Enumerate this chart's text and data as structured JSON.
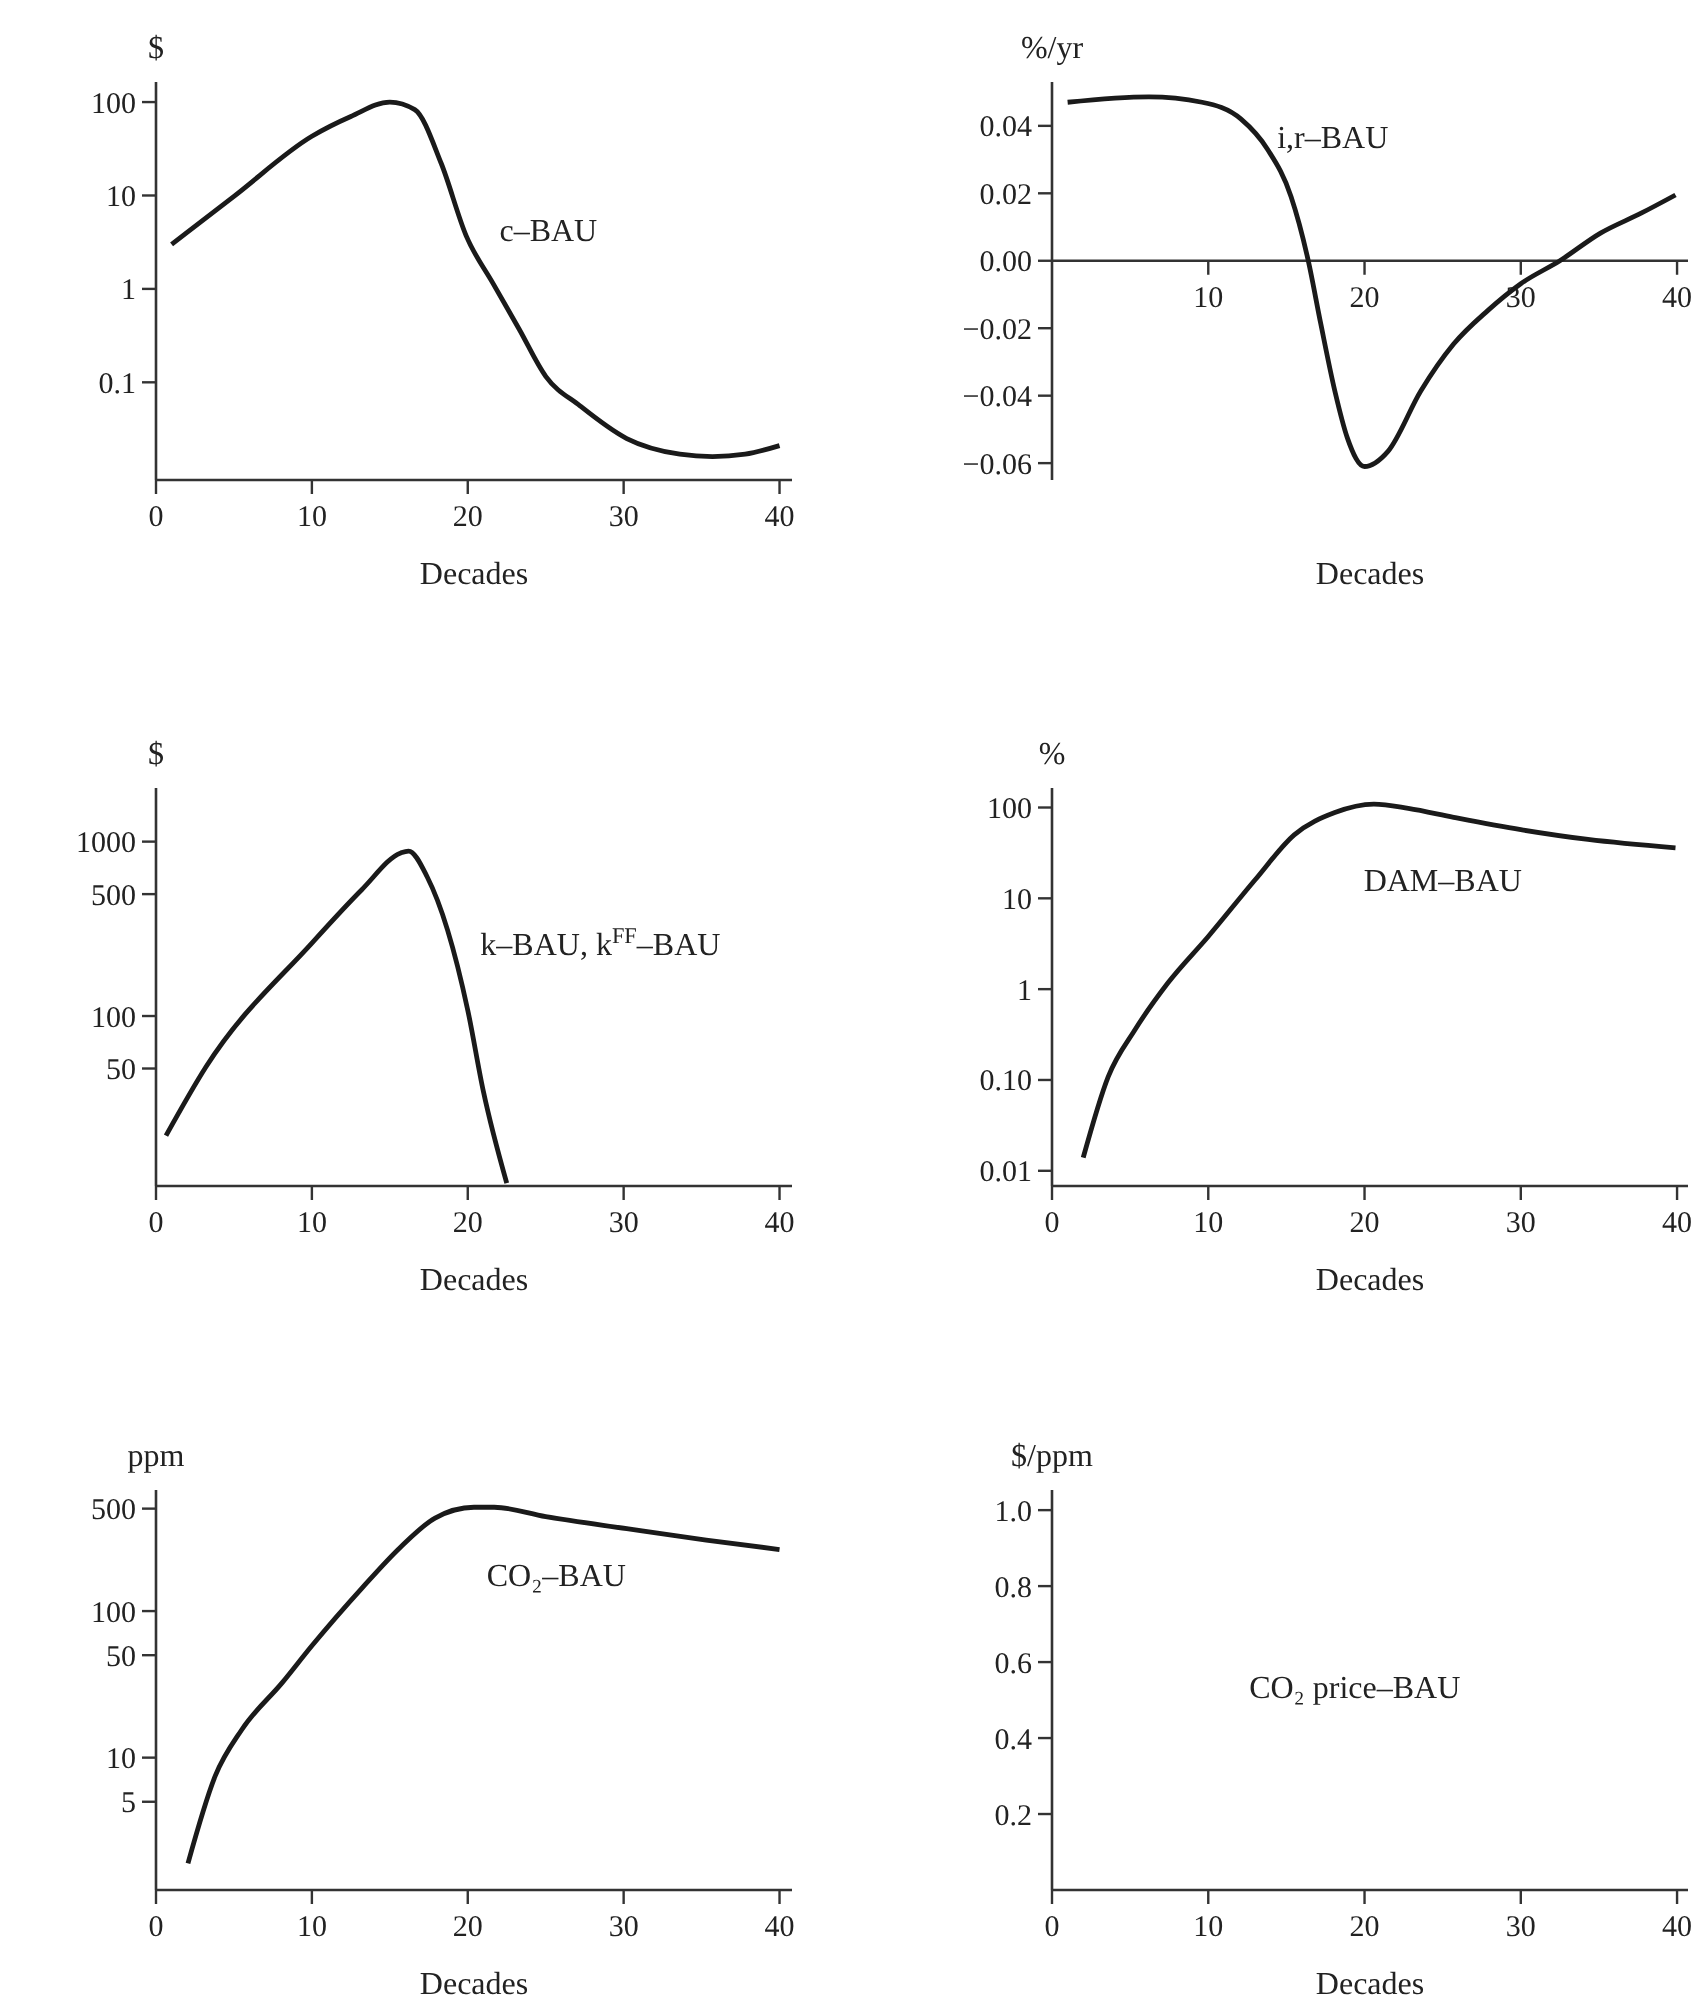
{
  "chart_data": [
    {
      "type": "line",
      "ylabel": "$",
      "xlabel": "Decades",
      "log": true,
      "xlim": [
        0,
        40.8
      ],
      "xticks": [
        0,
        10,
        20,
        30,
        40
      ],
      "ylim": [
        0.009,
        164
      ],
      "yticks": [
        0.1,
        1,
        10,
        100
      ],
      "series": [
        {
          "name": "c–BAU",
          "color": "#1a1a1a",
          "x": [
            1,
            5,
            10,
            12.5,
            15,
            16.6,
            18.3,
            19.9,
            21.6,
            23.3,
            25,
            27.2,
            30.2,
            33.6,
            35.7,
            37.8,
            40
          ],
          "values": [
            3,
            9.8,
            43,
            70,
            100,
            83,
            22,
            3.7,
            1.16,
            0.37,
            0.116,
            0.056,
            0.025,
            0.017,
            0.016,
            0.017,
            0.021
          ]
        }
      ]
    },
    {
      "type": "line",
      "ylabel": "%/yr",
      "xlabel": "Decades",
      "xlim": [
        0,
        40.7
      ],
      "xticks": [
        10,
        20,
        30,
        40
      ],
      "ylim": [
        -0.065,
        0.053
      ],
      "yticks": [
        {
          "value": -0.06,
          "label": "−0.06"
        },
        {
          "value": -0.04,
          "label": "−0.04"
        },
        {
          "value": -0.02,
          "label": "−0.02"
        },
        {
          "value": 0,
          "label": "0.00"
        },
        {
          "value": 0.02,
          "label": "0.02"
        },
        {
          "value": 0.04,
          "label": "0.04"
        }
      ],
      "series": [
        {
          "name": "i,r–BAU",
          "color": "#1a1a1a",
          "x": [
            1,
            6.2,
            9.6,
            12.1,
            13.8,
            15.3,
            16.4,
            17.2,
            18.1,
            18.9,
            20,
            21.5,
            23.6,
            25.7,
            27.9,
            30,
            32.5,
            35.1,
            37.7,
            39.9
          ],
          "values": [
            0.047,
            0.0486,
            0.047,
            0.042,
            0.033,
            0.019,
            0,
            -0.0187,
            -0.0386,
            -0.0525,
            -0.061,
            -0.0565,
            -0.0386,
            -0.0247,
            -0.0147,
            -0.0068,
            0,
            0.0082,
            0.0141,
            0.0195
          ]
        }
      ]
    },
    {
      "type": "line",
      "ylabel": "$",
      "xlabel": "Decades",
      "log": true,
      "xlim": [
        0,
        40.8
      ],
      "xticks": [
        0,
        10,
        20,
        30,
        40
      ],
      "ylim": [
        10.6,
        2030
      ],
      "yticks": [
        50,
        100,
        500,
        1000
      ],
      "series": [
        {
          "name": "k–BAU, k$^{FF}$–BAU",
          "color": "#1a1a1a",
          "x": [
            0.64,
            3.2,
            10,
            13.2,
            15.7,
            16.2,
            17.4,
            18.7,
            20,
            21,
            22.5
          ],
          "values": [
            20.6,
            51,
            262,
            530,
            861,
            883,
            627,
            312,
            108,
            37,
            11
          ]
        }
      ]
    },
    {
      "type": "line",
      "ylabel": "%",
      "xlabel": "Decades",
      "log": true,
      "xlim": [
        0,
        40.7
      ],
      "xticks": [
        0,
        10,
        20,
        30,
        40
      ],
      "ylim": [
        0.0068,
        164
      ],
      "yticks": [
        {
          "value": 0.01,
          "label": "0.01"
        },
        {
          "value": 0.1,
          "label": "0.10"
        },
        1,
        10,
        100
      ],
      "series": [
        {
          "name": "DAM–BAU",
          "color": "#1a1a1a",
          "x": [
            2,
            3.6,
            5.3,
            7.4,
            10,
            13,
            15.5,
            18.1,
            20.6,
            22.8,
            25.7,
            30,
            34.3,
            39.9
          ],
          "values": [
            0.014,
            0.109,
            0.355,
            1.16,
            3.8,
            16,
            50,
            88,
            109,
            98,
            78,
            57,
            44.5,
            36
          ]
        }
      ]
    },
    {
      "type": "line",
      "ylabel": "ppm",
      "xlabel": "Decades",
      "log": true,
      "xlim": [
        0,
        40.8
      ],
      "xticks": [
        0,
        10,
        20,
        30,
        40
      ],
      "ylim": [
        1.25,
        670
      ],
      "yticks": [
        5,
        10,
        50,
        100,
        500
      ],
      "series": [
        {
          "name": "CO₂–BAU",
          "color": "#1a1a1a",
          "x": [
            2.05,
            3.8,
            5.5,
            8.1,
            10,
            13.2,
            15.7,
            17.9,
            20.4,
            21.7,
            25,
            30.2,
            35.3,
            40
          ],
          "values": [
            1.9,
            7.5,
            15.5,
            32.5,
            58,
            143,
            274,
            431,
            511,
            511,
            441,
            365,
            305,
            263
          ]
        }
      ]
    },
    {
      "type": "line",
      "ylabel": "$/ppm",
      "xlabel": "Decades",
      "xlim": [
        0,
        40.7
      ],
      "xticks": [
        0,
        10,
        20,
        30,
        40
      ],
      "ylim": [
        0,
        1.053
      ],
      "yticks": [
        0.2,
        0.4,
        0.6,
        0.8,
        {
          "value": 1,
          "label": "1.0"
        }
      ],
      "annotations": [
        "CO₂ price–BAU"
      ]
    }
  ]
}
